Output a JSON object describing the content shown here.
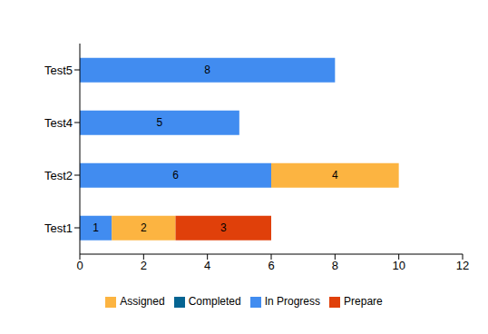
{
  "chart_data": {
    "type": "bar",
    "orientation": "horizontal",
    "stacked": true,
    "data_labels": true,
    "grid": false,
    "legend": "bottom",
    "categories": [
      "Test1",
      "Test2",
      "Test4",
      "Test5"
    ],
    "series": [
      {
        "name": "In Progress",
        "color": "#418CF0",
        "values": [
          1,
          6,
          5,
          8
        ]
      },
      {
        "name": "Assigned",
        "color": "#FCB441",
        "values": [
          2,
          4,
          null,
          null
        ]
      },
      {
        "name": "Prepare",
        "color": "#E0400A",
        "values": [
          3,
          null,
          null,
          null
        ]
      },
      {
        "name": "Completed",
        "color": "#056492",
        "values": [
          null,
          null,
          null,
          null
        ]
      }
    ],
    "xlim": [
      0,
      12
    ],
    "xticks": [
      0,
      2,
      4,
      6,
      8,
      10,
      12
    ]
  }
}
